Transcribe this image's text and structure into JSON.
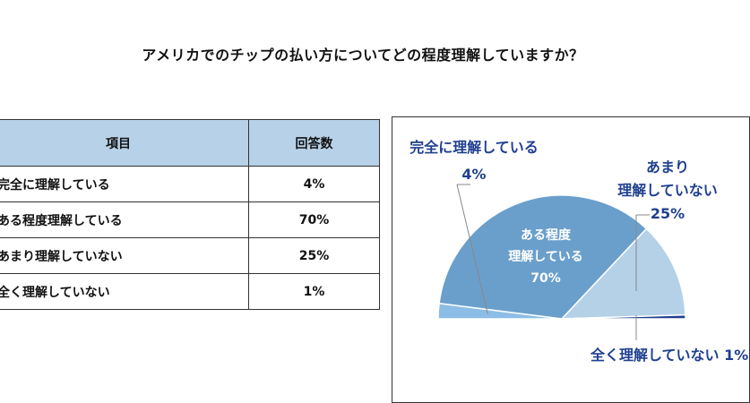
{
  "question": "アメリカでのチップの払い方についてどの程度理解していますか？",
  "table": {
    "headers": [
      "項目",
      "回答数"
    ],
    "rows": [
      {
        "item": "完全に理解している",
        "pct": "4%"
      },
      {
        "item": "ある程度理解している",
        "pct": "70%"
      },
      {
        "item": "あまり理解していない",
        "pct": "25%"
      },
      {
        "item": "全く理解していない",
        "pct": "1%"
      }
    ]
  },
  "chart_data": {
    "type": "pie",
    "shape": "semicircle",
    "grid": false,
    "legend": "none",
    "categories": [
      "完全に理解している",
      "ある程度理解している",
      "あまり理解していない",
      "全く理解していない"
    ],
    "values": [
      4,
      70,
      25,
      1
    ],
    "labels": [
      {
        "lines": [
          "完全に理解している",
          "4%"
        ]
      },
      {
        "lines": [
          "ある程度",
          "理解している",
          "70%"
        ]
      },
      {
        "lines": [
          "あまり",
          "理解していない",
          "25%"
        ]
      },
      {
        "lines": [
          "全く理解していない 1%"
        ]
      }
    ],
    "colors": [
      "#8cbde6",
      "#6a9fcc",
      "#b5d1e8",
      "#1f3f8f"
    ],
    "label_colors": [
      "#1f3f8f",
      "#ffffff",
      "#1f3f8f",
      "#1f3f8f"
    ]
  }
}
